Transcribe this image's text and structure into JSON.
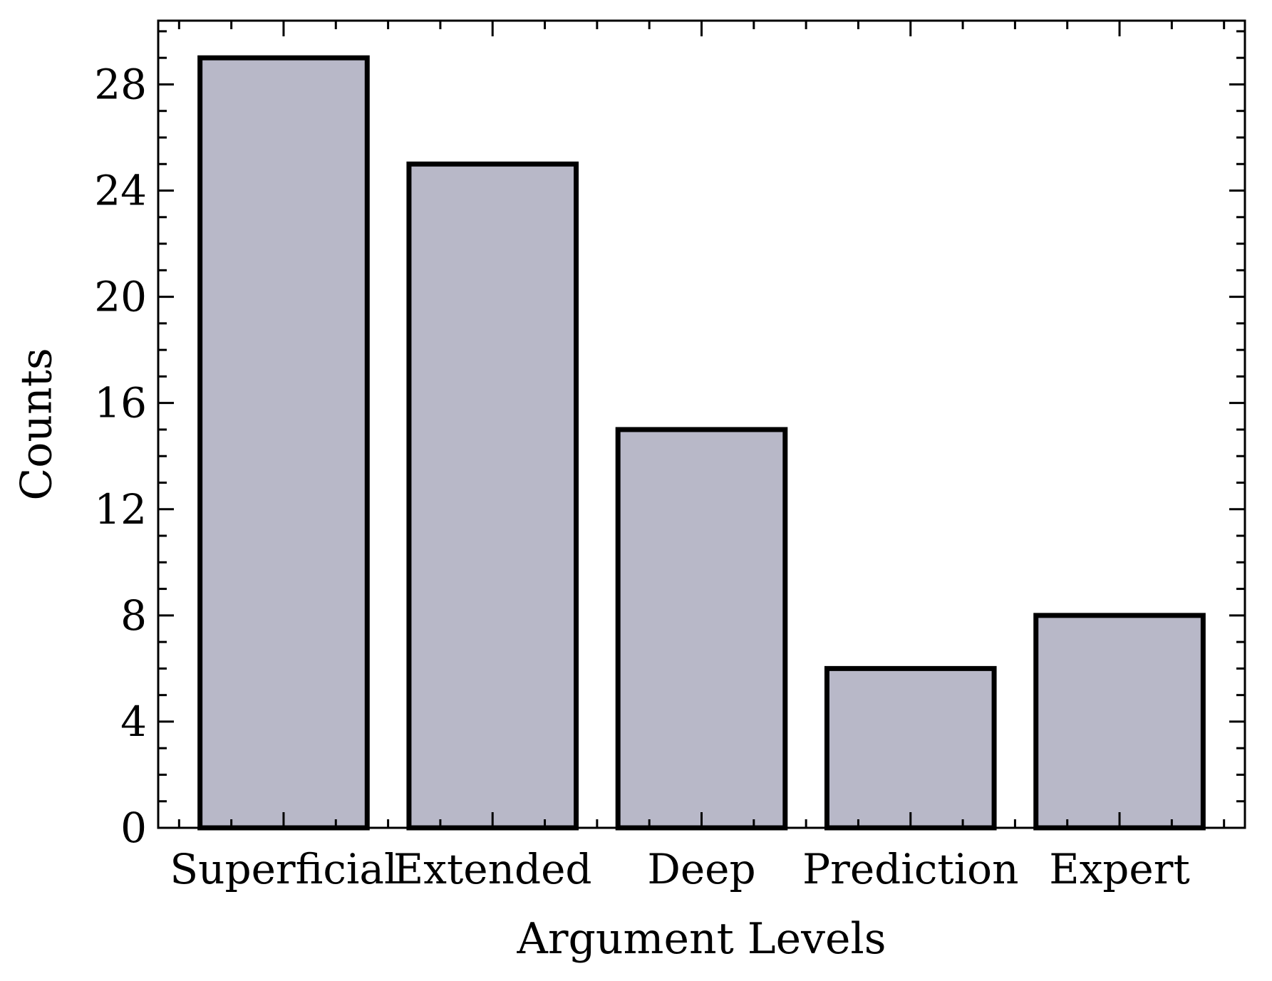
{
  "chart_data": {
    "type": "bar",
    "title": "",
    "xlabel": "Argument Levels",
    "ylabel": "Counts",
    "categories": [
      "Superficial",
      "Extended",
      "Deep",
      "Prediction",
      "Expert"
    ],
    "values": [
      29,
      25,
      15,
      6,
      8
    ],
    "ylim": [
      0,
      30.4
    ],
    "yticks": [
      "0",
      "4",
      "8",
      "12",
      "16",
      "20",
      "24",
      "28"
    ],
    "grid": false,
    "legend": "none",
    "bar_color": "#b8b8c8",
    "bar_edge_color": "#000000"
  }
}
